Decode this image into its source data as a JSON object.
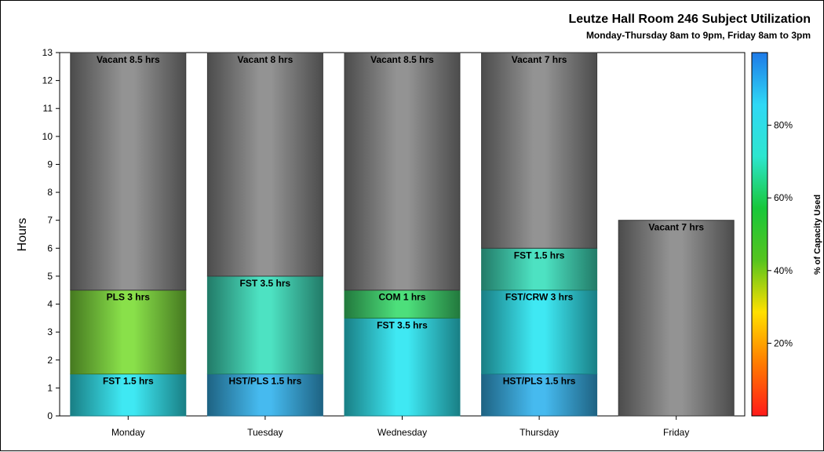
{
  "chart_data": {
    "type": "bar",
    "stacked": true,
    "title": "Leutze Hall Room 246 Subject Utilization",
    "subtitle": "Monday-Thursday 8am to 9pm, Friday 8am to 3pm",
    "ylabel": "Hours",
    "xlabel": "",
    "ylim": [
      0,
      13
    ],
    "yticks": [
      0,
      1,
      2,
      3,
      4,
      5,
      6,
      7,
      8,
      9,
      10,
      11,
      12,
      13
    ],
    "categories": [
      "Monday",
      "Tuesday",
      "Wednesday",
      "Thursday",
      "Friday"
    ],
    "stacks": [
      {
        "day": "Monday",
        "segments": [
          {
            "label": "FST 1.5 hrs",
            "hours": 1.5,
            "color": "#2ee6f2"
          },
          {
            "label": "PLS 3 hrs",
            "hours": 3,
            "color": "#7fdd3a"
          },
          {
            "label": "Vacant 8.5 hrs",
            "hours": 8.5,
            "color": "#8a8a8a"
          }
        ]
      },
      {
        "day": "Tuesday",
        "segments": [
          {
            "label": "HST/PLS 1.5 hrs",
            "hours": 1.5,
            "color": "#36b4ee"
          },
          {
            "label": "FST 3.5 hrs",
            "hours": 3.5,
            "color": "#3ee0bd"
          },
          {
            "label": "Vacant 8 hrs",
            "hours": 8,
            "color": "#8a8a8a"
          }
        ]
      },
      {
        "day": "Wednesday",
        "segments": [
          {
            "label": "FST 3.5 hrs",
            "hours": 3.5,
            "color": "#2ee6f2"
          },
          {
            "label": "COM 1 hrs",
            "hours": 1,
            "color": "#3ddc6f"
          },
          {
            "label": "Vacant 8.5 hrs",
            "hours": 8.5,
            "color": "#8a8a8a"
          }
        ]
      },
      {
        "day": "Thursday",
        "segments": [
          {
            "label": "HST/PLS 1.5 hrs",
            "hours": 1.5,
            "color": "#36b4ee"
          },
          {
            "label": "FST/CRW 3 hrs",
            "hours": 3,
            "color": "#2ee6f2"
          },
          {
            "label": "FST 1.5 hrs",
            "hours": 1.5,
            "color": "#3ee0bd"
          },
          {
            "label": "Vacant 7 hrs",
            "hours": 7,
            "color": "#8a8a8a"
          }
        ]
      },
      {
        "day": "Friday",
        "segments": [
          {
            "label": "Vacant 7 hrs",
            "hours": 7,
            "color": "#8a8a8a"
          }
        ]
      }
    ],
    "colorbar": {
      "label": "% of Capacity Used",
      "range": [
        0,
        100
      ],
      "ticks": [
        20,
        40,
        60,
        80
      ],
      "tick_suffix": "%",
      "stops": [
        "#ff1a1a",
        "#ff7a00",
        "#ffe000",
        "#56c41e",
        "#18c73a",
        "#2de6cf",
        "#2fd8f5",
        "#1e7ae8"
      ]
    }
  }
}
